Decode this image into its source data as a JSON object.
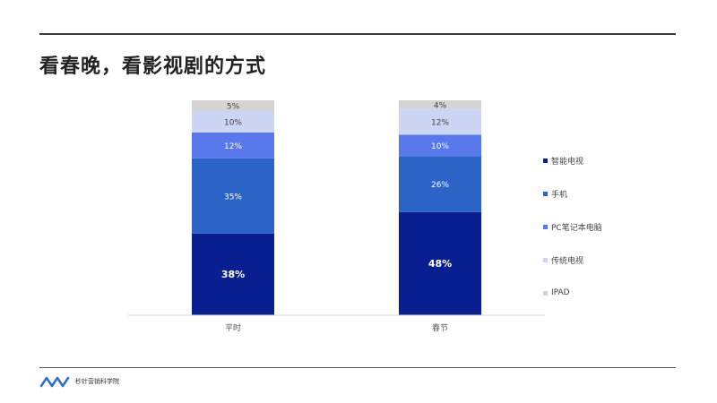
{
  "title": "看春晚，看影视剧的方式",
  "chart_data": {
    "type": "bar",
    "stacked": true,
    "categories": [
      "平时",
      "春节"
    ],
    "series": [
      {
        "name": "智能电视",
        "color": "#0a1f8f",
        "values": [
          38,
          48
        ],
        "labels": [
          "38%",
          "48%"
        ]
      },
      {
        "name": "手机",
        "color": "#2b63c6",
        "values": [
          35,
          26
        ],
        "labels": [
          "35%",
          "26%"
        ]
      },
      {
        "name": "PC笔记本电脑",
        "color": "#5878ec",
        "values": [
          12,
          10
        ],
        "labels": [
          "12%",
          "10%"
        ]
      },
      {
        "name": "传统电视",
        "color": "#ccd5f4",
        "values": [
          10,
          12
        ],
        "labels": [
          "10%",
          "12%"
        ]
      },
      {
        "name": "IPAD",
        "color": "#d4d4d4",
        "values": [
          5,
          4
        ],
        "labels": [
          "5%",
          "4%"
        ]
      }
    ],
    "ylim": [
      0,
      100
    ],
    "grid": false,
    "legend_position": "right"
  },
  "footer": {
    "logo_text": "秒针营销科学院"
  }
}
